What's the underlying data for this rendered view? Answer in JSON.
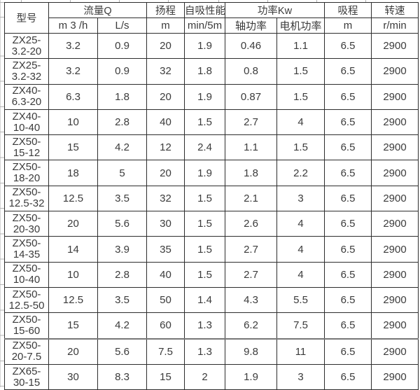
{
  "table": {
    "headers": {
      "model": "型号",
      "flow": "流量Q",
      "flow_m3h": "m 3 /h",
      "flow_ls": "L/s",
      "head": "扬程",
      "head_unit": "m",
      "selfprime": "自吸性能",
      "selfprime_unit": "min/5m",
      "power": "功率Kw",
      "power_shaft": "轴功率",
      "power_motor": "电机功率",
      "suction": "吸程",
      "suction_unit": "m",
      "speed": "转速",
      "speed_unit": "r/min"
    },
    "rows": [
      {
        "model": [
          "ZX25-",
          "3.2-20"
        ],
        "values": [
          "3.2",
          "0.9",
          "20",
          "1.9",
          "0.46",
          "1.1",
          "6.5",
          "2900"
        ]
      },
      {
        "model": [
          "ZX25-",
          "3.2-32"
        ],
        "values": [
          "3.2",
          "0.9",
          "32",
          "1.8",
          "0.8",
          "1.5",
          "6.5",
          "2900"
        ]
      },
      {
        "model": [
          "ZX40-",
          "6.3-20"
        ],
        "values": [
          "6.3",
          "1.8",
          "20",
          "1.9",
          "0.87",
          "1.5",
          "6.5",
          "2900"
        ]
      },
      {
        "model": [
          "ZX40-",
          "10-40"
        ],
        "values": [
          "10",
          "2.8",
          "40",
          "1.5",
          "2.7",
          "4",
          "6.5",
          "2900"
        ]
      },
      {
        "model": [
          "ZX50-",
          "15-12"
        ],
        "values": [
          "15",
          "4.2",
          "12",
          "2.4",
          "1.1",
          "1.5",
          "6.5",
          "2900"
        ]
      },
      {
        "model": [
          "ZX50-",
          "18-20"
        ],
        "values": [
          "18",
          "5",
          "20",
          "1.9",
          "1.8",
          "2.2",
          "6.5",
          "2900"
        ]
      },
      {
        "model": [
          "ZX50-",
          "12.5-32"
        ],
        "values": [
          "12.5",
          "3.5",
          "32",
          "1.5",
          "2.1",
          "3",
          "6.5",
          "2900"
        ]
      },
      {
        "model": [
          "ZX50-",
          "20-30"
        ],
        "values": [
          "20",
          "5.6",
          "30",
          "1.5",
          "2.6",
          "4",
          "6.5",
          "2900"
        ]
      },
      {
        "model": [
          "ZX50-",
          "14-35"
        ],
        "values": [
          "14",
          "3.9",
          "35",
          "1.5",
          "2.7",
          "4",
          "6.5",
          "2900"
        ]
      },
      {
        "model": [
          "ZX50-",
          "10-40"
        ],
        "values": [
          "10",
          "2.8",
          "40",
          "1.5",
          "2.7",
          "4",
          "6.5",
          "2900"
        ]
      },
      {
        "model": [
          "ZX50-",
          "12.5-50"
        ],
        "values": [
          "12.5",
          "3.5",
          "50",
          "1.4",
          "4.3",
          "5.5",
          "6.5",
          "2900"
        ]
      },
      {
        "model": [
          "ZX50-",
          "15-60"
        ],
        "values": [
          "15",
          "4.2",
          "60",
          "1.3",
          "6.2",
          "7.5",
          "6.5",
          "2900"
        ]
      },
      {
        "model": [
          "ZX50-",
          "20-7.5"
        ],
        "values": [
          "20",
          "5.6",
          "7.5",
          "1.3",
          "9.8",
          "11",
          "6.5",
          "2900"
        ],
        "thick_top": true
      },
      {
        "model": [
          "ZX65-",
          "30-15"
        ],
        "values": [
          "30",
          "8.3",
          "15",
          "2",
          "1.9",
          "3",
          "6.5",
          "2900"
        ]
      }
    ]
  },
  "colors": {
    "border": "#2d2d2d",
    "text": "#3b3b3b",
    "gridline_stub": "#b3b3b3",
    "page_break_line": "#777777",
    "background": "#ffffff"
  }
}
